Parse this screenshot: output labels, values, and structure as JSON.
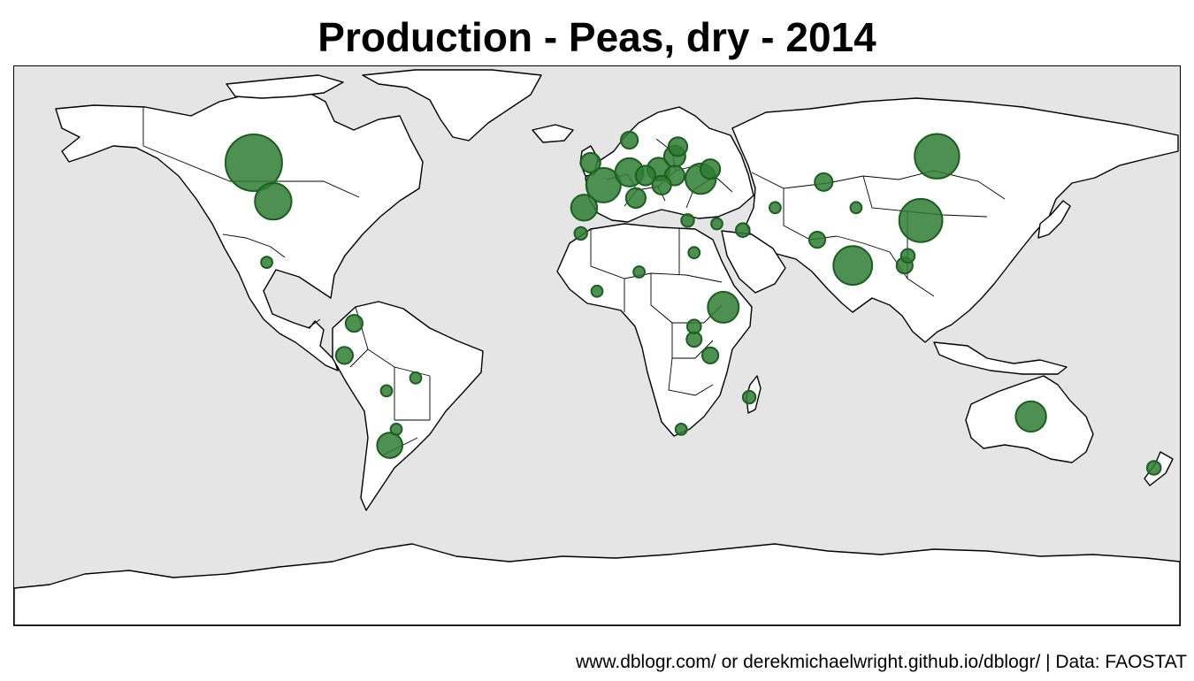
{
  "title": "Production - Peas, dry - 2014",
  "caption": "www.dblogr.com/ or derekmichaelwright.github.io/dblogr/ | Data: FAOSTAT",
  "colors": {
    "ocean": "#e5e5e5",
    "land": "#ffffff",
    "bubble_fill": "#2e7d32",
    "bubble_stroke": "#1b5e20"
  },
  "map_data": {
    "type": "bubble-map",
    "projection": "equirectangular",
    "size_legend": "none",
    "bubbles_relative_size": [
      {
        "lon": -106,
        "lat": 54,
        "size": 1.0
      },
      {
        "lon": 100,
        "lat": 36,
        "size": 0.58
      },
      {
        "lon": 105,
        "lat": 56,
        "size": 0.62
      },
      {
        "lon": -100,
        "lat": 42,
        "size": 0.42
      },
      {
        "lon": 79,
        "lat": 22,
        "size": 0.47
      },
      {
        "lon": 2,
        "lat": 47,
        "size": 0.37
      },
      {
        "lon": 39,
        "lat": 9,
        "size": 0.3
      },
      {
        "lon": 134,
        "lat": -25,
        "size": 0.29
      },
      {
        "lon": 32,
        "lat": 49,
        "size": 0.29
      },
      {
        "lon": 10,
        "lat": 51,
        "size": 0.25
      },
      {
        "lon": -4,
        "lat": 40,
        "size": 0.21
      },
      {
        "lon": -64,
        "lat": -34,
        "size": 0.2
      },
      {
        "lon": 19,
        "lat": 52,
        "size": 0.16
      },
      {
        "lon": 24,
        "lat": 56,
        "size": 0.14
      },
      {
        "lon": 24,
        "lat": 50,
        "size": 0.12
      },
      {
        "lon": 35,
        "lat": 52,
        "size": 0.12
      },
      {
        "lon": 15,
        "lat": 50,
        "size": 0.12
      },
      {
        "lon": 12,
        "lat": 43,
        "size": 0.12
      },
      {
        "lon": -2,
        "lat": 54,
        "size": 0.12
      },
      {
        "lon": 20,
        "lat": 47,
        "size": 0.11
      },
      {
        "lon": 25,
        "lat": 59,
        "size": 0.11
      },
      {
        "lon": 70,
        "lat": 48,
        "size": 0.1
      },
      {
        "lon": 10,
        "lat": 61,
        "size": 0.09
      },
      {
        "lon": -75,
        "lat": 4,
        "size": 0.09
      },
      {
        "lon": -78,
        "lat": -6,
        "size": 0.09
      },
      {
        "lon": 68,
        "lat": 30,
        "size": 0.08
      },
      {
        "lon": 95,
        "lat": 22,
        "size": 0.08
      },
      {
        "lon": 35,
        "lat": -6,
        "size": 0.08
      },
      {
        "lon": 30,
        "lat": -1,
        "size": 0.07
      },
      {
        "lon": 96,
        "lat": 25,
        "size": 0.06
      },
      {
        "lon": 45,
        "lat": 33,
        "size": 0.06
      },
      {
        "lon": 30,
        "lat": 3,
        "size": 0.06
      },
      {
        "lon": 172,
        "lat": -41,
        "size": 0.06
      },
      {
        "lon": 47,
        "lat": -19,
        "size": 0.05
      },
      {
        "lon": 28,
        "lat": 36,
        "size": 0.05
      },
      {
        "lon": -5,
        "lat": 32,
        "size": 0.05
      },
      {
        "lon": -102,
        "lat": 23,
        "size": 0.04
      },
      {
        "lon": -65,
        "lat": -17,
        "size": 0.04
      },
      {
        "lon": -56,
        "lat": -13,
        "size": 0.04
      },
      {
        "lon": 13,
        "lat": 20,
        "size": 0.04
      },
      {
        "lon": 26,
        "lat": -29,
        "size": 0.04
      },
      {
        "lon": 30,
        "lat": 26,
        "size": 0.04
      },
      {
        "lon": 55,
        "lat": 40,
        "size": 0.04
      },
      {
        "lon": 0,
        "lat": 14,
        "size": 0.04
      },
      {
        "lon": -62,
        "lat": -29,
        "size": 0.04
      },
      {
        "lon": 80,
        "lat": 40,
        "size": 0.04
      },
      {
        "lon": 37,
        "lat": 35,
        "size": 0.04
      }
    ]
  }
}
